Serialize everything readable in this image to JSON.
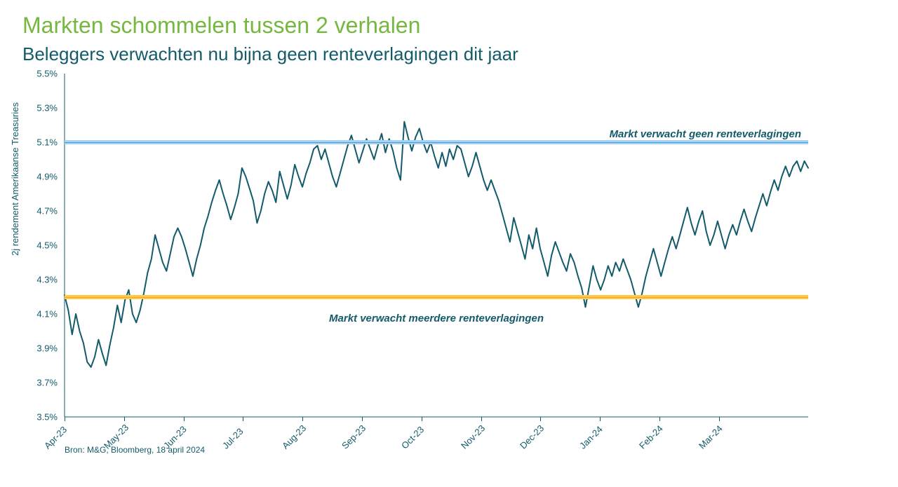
{
  "titles": {
    "main": "Markten schommelen tussen 2 verhalen",
    "sub": "Beleggers verwachten nu bijna geen renteverlagingen dit jaar"
  },
  "chart": {
    "type": "line",
    "y_axis": {
      "title": "2j rendement Amerikaanse Treasuries",
      "min": 3.5,
      "max": 5.5,
      "ticks": [
        3.5,
        3.7,
        3.9,
        4.1,
        4.3,
        4.5,
        4.7,
        4.9,
        5.1,
        5.3,
        5.5
      ],
      "tick_format_suffix": "%",
      "font_size": 13,
      "color": "#135b6b"
    },
    "x_axis": {
      "labels": [
        "Apr-23",
        "May-23",
        "Jun-23",
        "Jul-23",
        "Aug-23",
        "Sep-23",
        "Oct-23",
        "Nov-23",
        "Dec-23",
        "Jan-24",
        "Feb-24",
        "Mar-24"
      ],
      "label_rotation_deg": -45,
      "font_size": 13,
      "color": "#135b6b",
      "start_index": 0,
      "end_index": 12.5
    },
    "reference_bands": [
      {
        "value": 5.1,
        "band_color": "#a7d1f0",
        "line_color": "#4a9ad6",
        "label": "Markt verwacht geen renteverlagingen",
        "label_side": "right",
        "label_offset_y": -20
      },
      {
        "value": 4.2,
        "band_color": "#ffc94a",
        "line_color": "#f5a623",
        "label": "Markt verwacht meerdere renteverlagingen",
        "label_side": "center",
        "label_offset_y": 22
      }
    ],
    "series": {
      "color": "#135b6b",
      "width": 2,
      "data": [
        4.21,
        4.12,
        3.98,
        4.1,
        4.0,
        3.93,
        3.82,
        3.79,
        3.85,
        3.95,
        3.87,
        3.8,
        3.92,
        4.02,
        4.15,
        4.05,
        4.18,
        4.24,
        4.1,
        4.05,
        4.12,
        4.22,
        4.34,
        4.42,
        4.56,
        4.48,
        4.4,
        4.35,
        4.45,
        4.55,
        4.6,
        4.55,
        4.48,
        4.4,
        4.32,
        4.42,
        4.5,
        4.6,
        4.67,
        4.75,
        4.82,
        4.88,
        4.8,
        4.73,
        4.65,
        4.72,
        4.8,
        4.95,
        4.9,
        4.83,
        4.76,
        4.63,
        4.7,
        4.8,
        4.87,
        4.82,
        4.75,
        4.93,
        4.85,
        4.77,
        4.85,
        4.97,
        4.9,
        4.84,
        4.92,
        4.98,
        5.06,
        5.08,
        5.0,
        5.06,
        4.98,
        4.9,
        4.84,
        4.92,
        5.0,
        5.08,
        5.14,
        5.06,
        4.98,
        5.05,
        5.12,
        5.06,
        5.0,
        5.08,
        5.15,
        5.04,
        5.12,
        5.05,
        4.95,
        4.88,
        5.22,
        5.13,
        5.05,
        5.13,
        5.18,
        5.1,
        5.04,
        5.1,
        5.02,
        4.95,
        5.04,
        4.96,
        5.06,
        5.0,
        5.08,
        5.06,
        4.98,
        4.9,
        4.96,
        5.04,
        4.96,
        4.88,
        4.82,
        4.88,
        4.82,
        4.76,
        4.68,
        4.6,
        4.52,
        4.66,
        4.58,
        4.5,
        4.42,
        4.56,
        4.48,
        4.6,
        4.48,
        4.4,
        4.32,
        4.44,
        4.52,
        4.46,
        4.4,
        4.35,
        4.45,
        4.4,
        4.32,
        4.25,
        4.14,
        4.26,
        4.38,
        4.3,
        4.24,
        4.3,
        4.38,
        4.32,
        4.4,
        4.35,
        4.42,
        4.36,
        4.3,
        4.22,
        4.14,
        4.22,
        4.32,
        4.4,
        4.48,
        4.4,
        4.32,
        4.4,
        4.48,
        4.55,
        4.48,
        4.56,
        4.64,
        4.72,
        4.63,
        4.56,
        4.64,
        4.7,
        4.58,
        4.5,
        4.56,
        4.64,
        4.56,
        4.48,
        4.56,
        4.62,
        4.56,
        4.64,
        4.71,
        4.64,
        4.58,
        4.66,
        4.73,
        4.8,
        4.73,
        4.81,
        4.88,
        4.82,
        4.9,
        4.96,
        4.9,
        4.96,
        4.99,
        4.93,
        4.99,
        4.95
      ]
    },
    "background_color": "#ffffff",
    "axis_color": "#135b6b"
  },
  "source_line": "Bron: M&G, Bloomberg, 18 april 2024"
}
